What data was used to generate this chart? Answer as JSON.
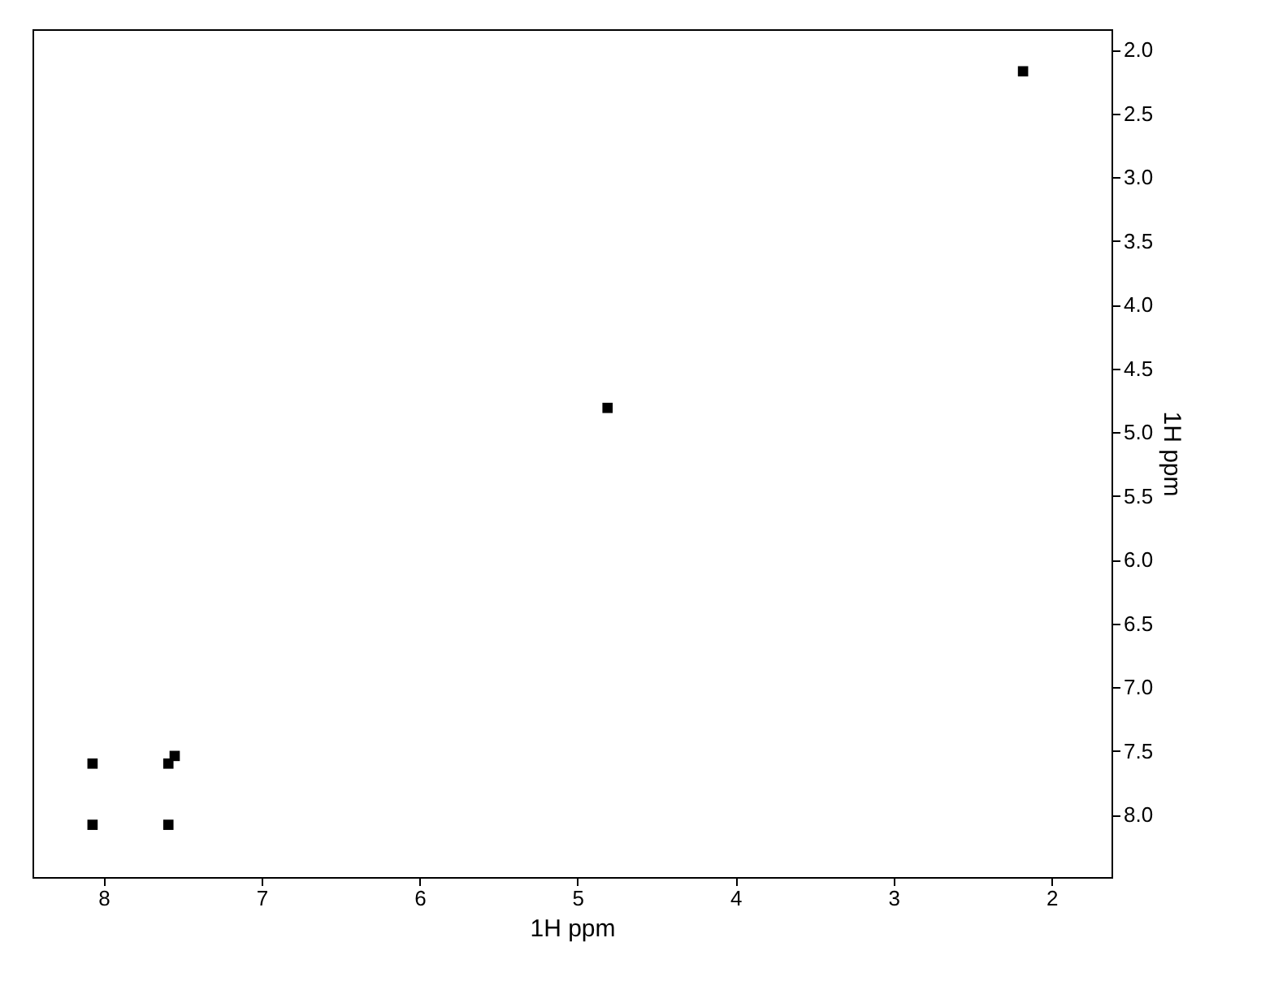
{
  "chart_data": {
    "type": "scatter",
    "xlabel": "1H ppm",
    "ylabel": "1H ppm",
    "series": [
      {
        "color": "#000000",
        "x": [
          8.07,
          8.07,
          7.59,
          7.55,
          7.59,
          4.81,
          2.18
        ],
        "values": [
          7.6,
          8.08,
          7.6,
          7.54,
          8.08,
          4.81,
          2.17
        ]
      }
    ],
    "xlim": [
      8.45,
      1.62
    ],
    "ylim": [
      8.49,
      1.84
    ],
    "xticks": [
      8,
      7,
      6,
      5,
      4,
      3,
      2
    ],
    "yticks": [
      {
        "value": 2,
        "label": "2.0"
      },
      2.5,
      {
        "value": 3,
        "label": "3.0"
      },
      3.5,
      {
        "value": 4,
        "label": "4.0"
      },
      4.5,
      {
        "value": 5,
        "label": "5.0"
      },
      5.5,
      {
        "value": 6,
        "label": "6.0"
      },
      6.5,
      {
        "value": 7,
        "label": "7.0"
      },
      7.5,
      {
        "value": 8,
        "label": "8.0"
      }
    ],
    "marker": "square",
    "grid": false,
    "legend": false
  }
}
